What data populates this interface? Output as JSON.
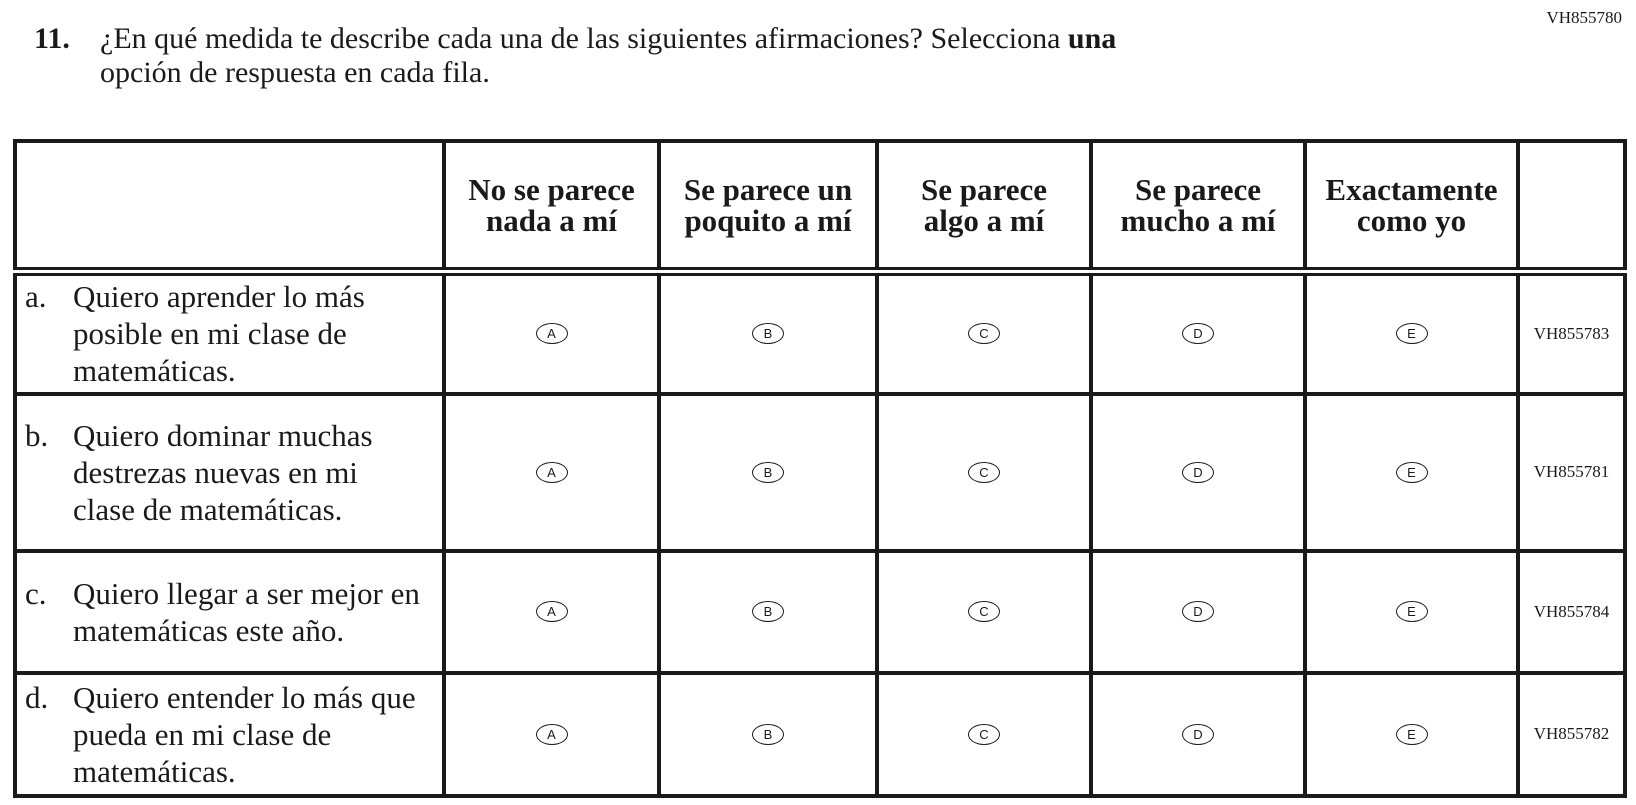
{
  "page_code": "VH855780",
  "question": {
    "number": "11.",
    "text_before_bold": "¿En qué medida te describe cada una de las siguientes afirmaciones? Selecciona ",
    "bold_word": "una",
    "text_line2": "opción de respuesta en cada fila."
  },
  "columns": [
    "No se parece nada a mí",
    "Se parece un poquito a mí",
    "Se parece algo a mí",
    "Se parece mucho a mí",
    "Exactamente como yo"
  ],
  "options": [
    "A",
    "B",
    "C",
    "D",
    "E"
  ],
  "rows": [
    {
      "label": "a.",
      "text": "Quiero aprender lo más posible en mi clase de matemáticas.",
      "code": "VH855783"
    },
    {
      "label": "b.",
      "text": "Quiero dominar muchas destrezas nuevas en mi clase de matemáticas.",
      "code": "VH855781"
    },
    {
      "label": "c.",
      "text": "Quiero llegar a ser mejor en matemáticas este año.",
      "code": "VH855784"
    },
    {
      "label": "d.",
      "text": "Quiero entender lo más que pueda en mi clase de matemáticas.",
      "code": "VH855782"
    }
  ]
}
